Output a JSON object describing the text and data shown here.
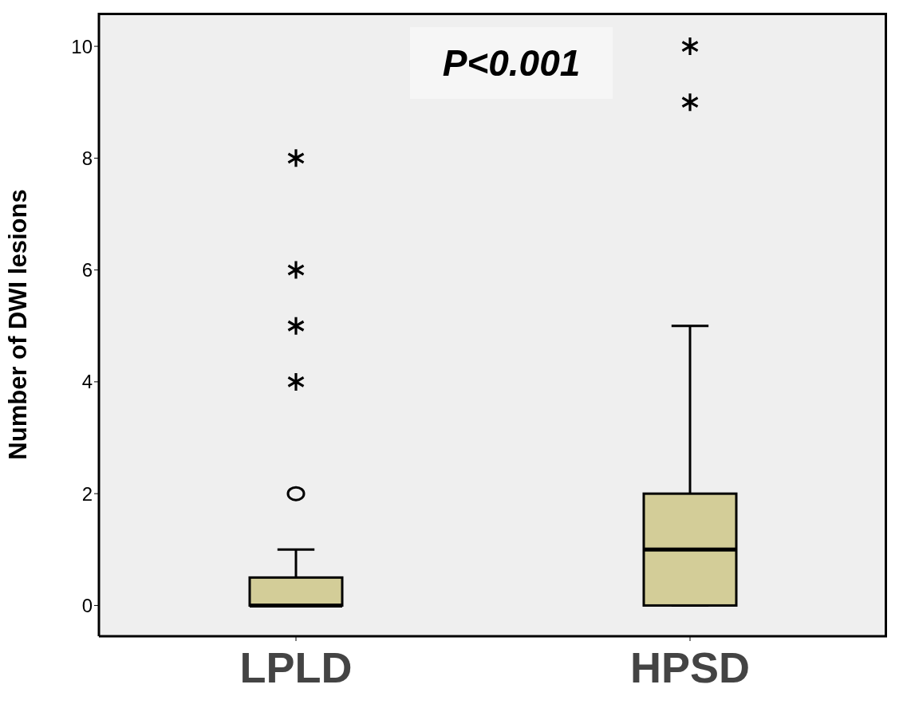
{
  "chart_data": {
    "type": "box",
    "categories": [
      "LPLD",
      "HPSD"
    ],
    "ylabel": "Number of DWI lesions",
    "ylim": [
      -0.55,
      10.6
    ],
    "yticks": [
      0,
      2,
      4,
      6,
      8,
      10
    ],
    "grid": false,
    "legend": false,
    "annotations": [
      "P<0.001"
    ],
    "series": [
      {
        "color": "#d3cd98",
        "boxes": [
          {
            "low": 0,
            "q1": 0,
            "median": 0,
            "q3": 0.5,
            "high": 1,
            "outliers": [
              2,
              4,
              5,
              6,
              8
            ]
          },
          {
            "low": 0,
            "q1": 0,
            "median": 1,
            "q3": 2,
            "high": 5,
            "outliers": [
              9,
              10
            ]
          }
        ]
      }
    ]
  }
}
